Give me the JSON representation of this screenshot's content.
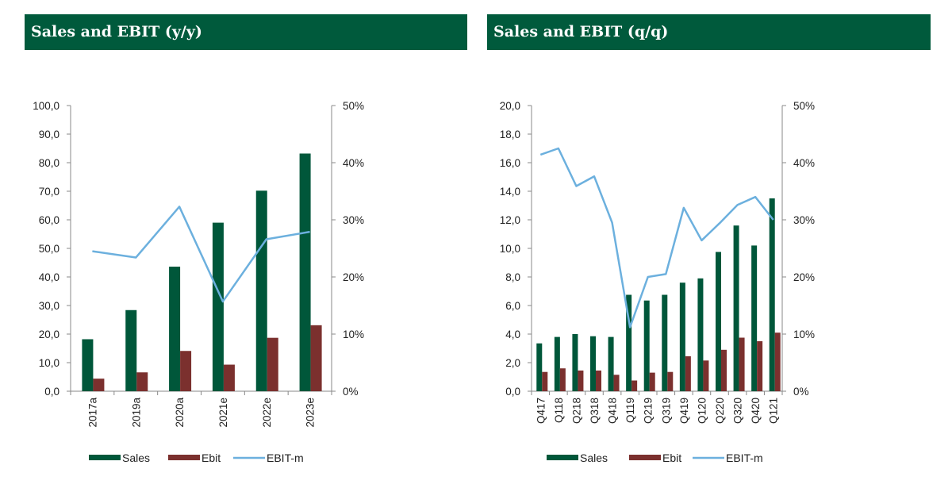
{
  "headers": {
    "left": "Sales and EBIT (y/y)",
    "right": "Sales and EBIT (q/q)"
  },
  "colors": {
    "header_bg": "#005a3c",
    "sales": "#00573a",
    "ebit": "#7b302e",
    "ebit_m": "#6cb0de"
  },
  "chart_data": [
    {
      "type": "bar",
      "title": "Sales and EBIT (y/y)",
      "categories": [
        "2017a",
        "2019a",
        "2020a",
        "2021e",
        "2022e",
        "2023e"
      ],
      "series": [
        {
          "name": "Sales",
          "type": "bar",
          "axis": "left",
          "values": [
            18.2,
            28.4,
            43.6,
            59.0,
            70.2,
            83.2
          ]
        },
        {
          "name": "Ebit",
          "type": "bar",
          "axis": "left",
          "values": [
            4.4,
            6.6,
            14.1,
            9.3,
            18.7,
            23.1
          ]
        },
        {
          "name": "EBIT-m",
          "type": "line",
          "axis": "right",
          "values": [
            24.5,
            23.4,
            32.3,
            15.7,
            26.6,
            27.9
          ]
        }
      ],
      "left_axis": {
        "min": 0,
        "max": 100,
        "step": 10,
        "ticks": [
          "0,0",
          "10,0",
          "20,0",
          "30,0",
          "40,0",
          "50,0",
          "60,0",
          "70,0",
          "80,0",
          "90,0",
          "100,0"
        ]
      },
      "right_axis": {
        "min": 0,
        "max": 50,
        "step": 10,
        "ticks": [
          "0%",
          "10%",
          "20%",
          "30%",
          "40%",
          "50%"
        ]
      },
      "legend": [
        "Sales",
        "Ebit",
        "EBIT-m"
      ],
      "legend_position": "bottom",
      "grid": false
    },
    {
      "type": "bar",
      "title": "Sales and EBIT (q/q)",
      "categories": [
        "Q417",
        "Q118",
        "Q218",
        "Q318",
        "Q418",
        "Q119",
        "Q219",
        "Q319",
        "Q419",
        "Q120",
        "Q220",
        "Q320",
        "Q420",
        "Q121"
      ],
      "series": [
        {
          "name": "Sales",
          "type": "bar",
          "axis": "left",
          "values": [
            3.35,
            3.8,
            4.0,
            3.85,
            3.8,
            6.75,
            6.35,
            6.75,
            7.6,
            7.9,
            9.75,
            11.6,
            10.2,
            13.5
          ]
        },
        {
          "name": "Ebit",
          "type": "bar",
          "axis": "left",
          "values": [
            1.35,
            1.6,
            1.45,
            1.45,
            1.15,
            0.75,
            1.3,
            1.35,
            2.45,
            2.15,
            2.9,
            3.75,
            3.5,
            4.1
          ]
        },
        {
          "name": "EBIT-m",
          "type": "line",
          "axis": "right",
          "values": [
            41.4,
            42.5,
            35.9,
            37.6,
            29.5,
            11.2,
            20.0,
            20.5,
            32.1,
            26.4,
            29.4,
            32.6,
            34.0,
            30.0
          ]
        }
      ],
      "left_axis": {
        "min": 0,
        "max": 20,
        "step": 2,
        "ticks": [
          "0,0",
          "2,0",
          "4,0",
          "6,0",
          "8,0",
          "10,0",
          "12,0",
          "14,0",
          "16,0",
          "18,0",
          "20,0"
        ]
      },
      "right_axis": {
        "min": 0,
        "max": 50,
        "step": 10,
        "ticks": [
          "0%",
          "10%",
          "20%",
          "30%",
          "40%",
          "50%"
        ]
      },
      "legend": [
        "Sales",
        "Ebit",
        "EBIT-m"
      ],
      "legend_position": "bottom",
      "grid": false
    }
  ]
}
